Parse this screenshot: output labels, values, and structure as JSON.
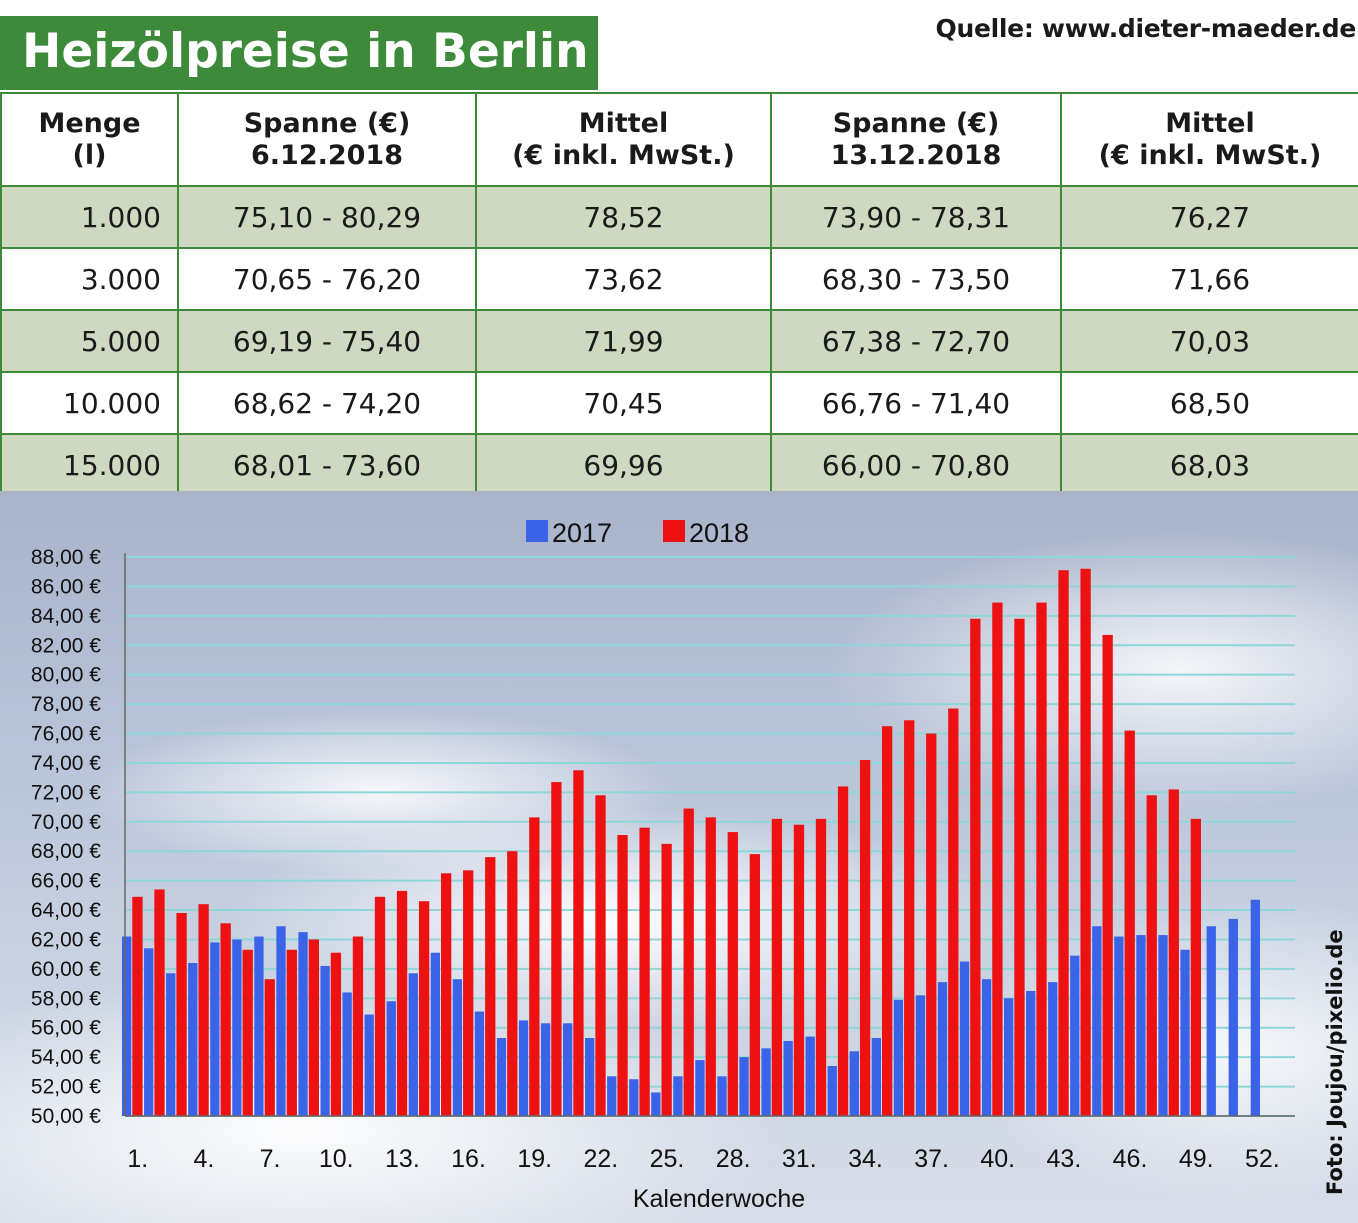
{
  "title": "Heizölpreise in Berlin",
  "source": "Quelle: www.dieter-maeder.de",
  "photo_credit": "Foto: Joujou/pixelio.de",
  "table": {
    "headers": [
      {
        "line1": "Menge",
        "line2": "(l)"
      },
      {
        "line1": "Spanne (€)",
        "line2": "6.12.2018"
      },
      {
        "line1": "Mittel",
        "line2": "(€ inkl. MwSt.)"
      },
      {
        "line1": "Spanne (€)",
        "line2": "13.12.2018"
      },
      {
        "line1": "Mittel",
        "line2": "(€ inkl. MwSt.)"
      }
    ],
    "rows": [
      [
        "1.000",
        "75,10 - 80,29",
        "78,52",
        "73,90 - 78,31",
        "76,27"
      ],
      [
        "3.000",
        "70,65 - 76,20",
        "73,62",
        "68,30 - 73,50",
        "71,66"
      ],
      [
        "5.000",
        "69,19 - 75,40",
        "71,99",
        "67,38 - 72,70",
        "70,03"
      ],
      [
        "10.000",
        "68,62 - 74,20",
        "70,45",
        "66,76 - 71,40",
        "68,50"
      ],
      [
        "15.000",
        "68,01 - 73,60",
        "69,96",
        "66,00 - 70,80",
        "68,03"
      ]
    ]
  },
  "colors": {
    "brand_green": "#3d8b3a",
    "series_2017": "#3a63e8",
    "series_2018": "#ee1111",
    "gridline": "#8fd6d8"
  },
  "chart_data": {
    "type": "bar",
    "xlabel": "Kalenderwoche",
    "ylabel": "",
    "ylim": [
      50,
      88
    ],
    "y_ticks": [
      "50,00 €",
      "52,00 €",
      "54,00 €",
      "56,00 €",
      "58,00 €",
      "60,00 €",
      "62,00 €",
      "64,00 €",
      "66,00 €",
      "68,00 €",
      "70,00 €",
      "72,00 €",
      "74,00 €",
      "76,00 €",
      "78,00 €",
      "80,00 €",
      "82,00 €",
      "84,00 €",
      "86,00 €",
      "88,00 €"
    ],
    "x_tick_labels": [
      "1.",
      "4.",
      "7.",
      "10.",
      "13.",
      "16.",
      "19.",
      "22.",
      "25.",
      "28.",
      "31.",
      "34.",
      "37.",
      "40.",
      "43.",
      "46.",
      "49.",
      "52."
    ],
    "x_tick_weeks": [
      1,
      4,
      7,
      10,
      13,
      16,
      19,
      22,
      25,
      28,
      31,
      34,
      37,
      40,
      43,
      46,
      49,
      52
    ],
    "legend_position": "top-center",
    "grid": true,
    "weeks": [
      1,
      2,
      3,
      4,
      5,
      6,
      7,
      8,
      9,
      10,
      11,
      12,
      13,
      14,
      15,
      16,
      17,
      18,
      19,
      20,
      21,
      22,
      23,
      24,
      25,
      26,
      27,
      28,
      29,
      30,
      31,
      32,
      33,
      34,
      35,
      36,
      37,
      38,
      39,
      40,
      41,
      42,
      43,
      44,
      45,
      46,
      47,
      48,
      49,
      50,
      51,
      52
    ],
    "series": [
      {
        "name": "2017",
        "values": [
          62.2,
          61.4,
          59.7,
          60.4,
          61.8,
          62.0,
          62.2,
          62.9,
          62.5,
          60.2,
          58.4,
          56.9,
          57.8,
          59.7,
          61.1,
          59.3,
          57.1,
          55.3,
          56.5,
          56.3,
          56.3,
          55.3,
          52.7,
          52.5,
          51.6,
          52.7,
          53.8,
          52.7,
          54.0,
          54.6,
          55.1,
          55.4,
          53.4,
          54.4,
          55.3,
          57.9,
          58.2,
          59.1,
          60.5,
          59.3,
          58.0,
          58.5,
          59.1,
          60.9,
          62.9,
          62.2,
          62.3,
          62.3,
          61.3,
          62.9,
          63.4,
          64.7
        ]
      },
      {
        "name": "2018",
        "values": [
          64.9,
          65.4,
          63.8,
          64.4,
          63.1,
          61.3,
          59.3,
          61.3,
          62.0,
          61.1,
          62.2,
          64.9,
          65.3,
          64.6,
          66.5,
          66.7,
          67.6,
          68.0,
          70.3,
          72.7,
          73.5,
          71.8,
          69.1,
          69.6,
          68.5,
          70.9,
          70.3,
          69.3,
          67.8,
          70.2,
          69.8,
          70.2,
          72.4,
          74.2,
          76.5,
          76.9,
          76.0,
          77.7,
          83.8,
          84.9,
          83.8,
          84.9,
          87.1,
          87.2,
          82.7,
          76.2,
          71.8,
          72.2,
          70.2,
          null,
          null,
          null
        ]
      }
    ]
  }
}
